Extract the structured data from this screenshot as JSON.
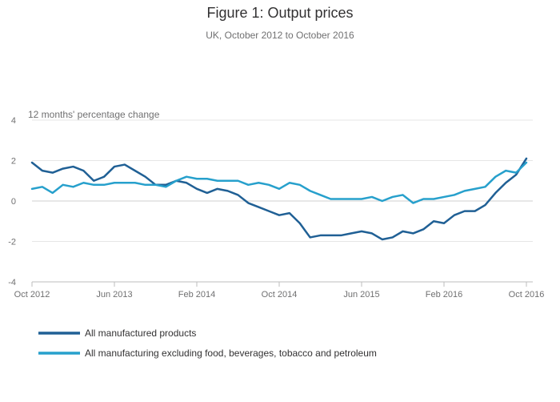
{
  "chart_data": {
    "type": "line",
    "title": "Figure 1: Output prices",
    "subtitle": "UK, October 2012 to October 2016",
    "ylabel": "12 months' percentage change",
    "xlabel": "",
    "ylim": [
      -4,
      4
    ],
    "yticks": [
      4,
      2,
      0,
      -2,
      -4
    ],
    "xticks": [
      {
        "label": "Oct 2012",
        "index": 0
      },
      {
        "label": "Jun 2013",
        "index": 8
      },
      {
        "label": "Feb 2014",
        "index": 16
      },
      {
        "label": "Oct 2014",
        "index": 24
      },
      {
        "label": "Jun 2015",
        "index": 32
      },
      {
        "label": "Feb 2016",
        "index": 40
      },
      {
        "label": "Oct 2016",
        "index": 48
      }
    ],
    "series": [
      {
        "name": "All manufactured products",
        "color": "#206095",
        "values": [
          1.9,
          1.5,
          1.4,
          1.6,
          1.7,
          1.5,
          1.0,
          1.2,
          1.7,
          1.8,
          1.5,
          1.2,
          0.8,
          0.8,
          1.0,
          0.9,
          0.6,
          0.4,
          0.6,
          0.5,
          0.3,
          -0.1,
          -0.3,
          -0.5,
          -0.7,
          -0.6,
          -1.1,
          -1.8,
          -1.7,
          -1.7,
          -1.7,
          -1.6,
          -1.5,
          -1.6,
          -1.9,
          -1.8,
          -1.5,
          -1.6,
          -1.4,
          -1.0,
          -1.1,
          -0.7,
          -0.5,
          -0.5,
          -0.2,
          0.4,
          0.9,
          1.3,
          2.1
        ]
      },
      {
        "name": "All manufacturing excluding food, beverages, tobacco and petroleum",
        "color": "#27a0cc",
        "values": [
          0.6,
          0.7,
          0.4,
          0.8,
          0.7,
          0.9,
          0.8,
          0.8,
          0.9,
          0.9,
          0.9,
          0.8,
          0.8,
          0.7,
          1.0,
          1.2,
          1.1,
          1.1,
          1.0,
          1.0,
          1.0,
          0.8,
          0.9,
          0.8,
          0.6,
          0.9,
          0.8,
          0.5,
          0.3,
          0.1,
          0.1,
          0.1,
          0.1,
          0.2,
          0.0,
          0.2,
          0.3,
          -0.1,
          0.1,
          0.1,
          0.2,
          0.3,
          0.5,
          0.6,
          0.7,
          1.2,
          1.5,
          1.4,
          1.9
        ]
      }
    ],
    "legend_position": "bottom-left"
  }
}
